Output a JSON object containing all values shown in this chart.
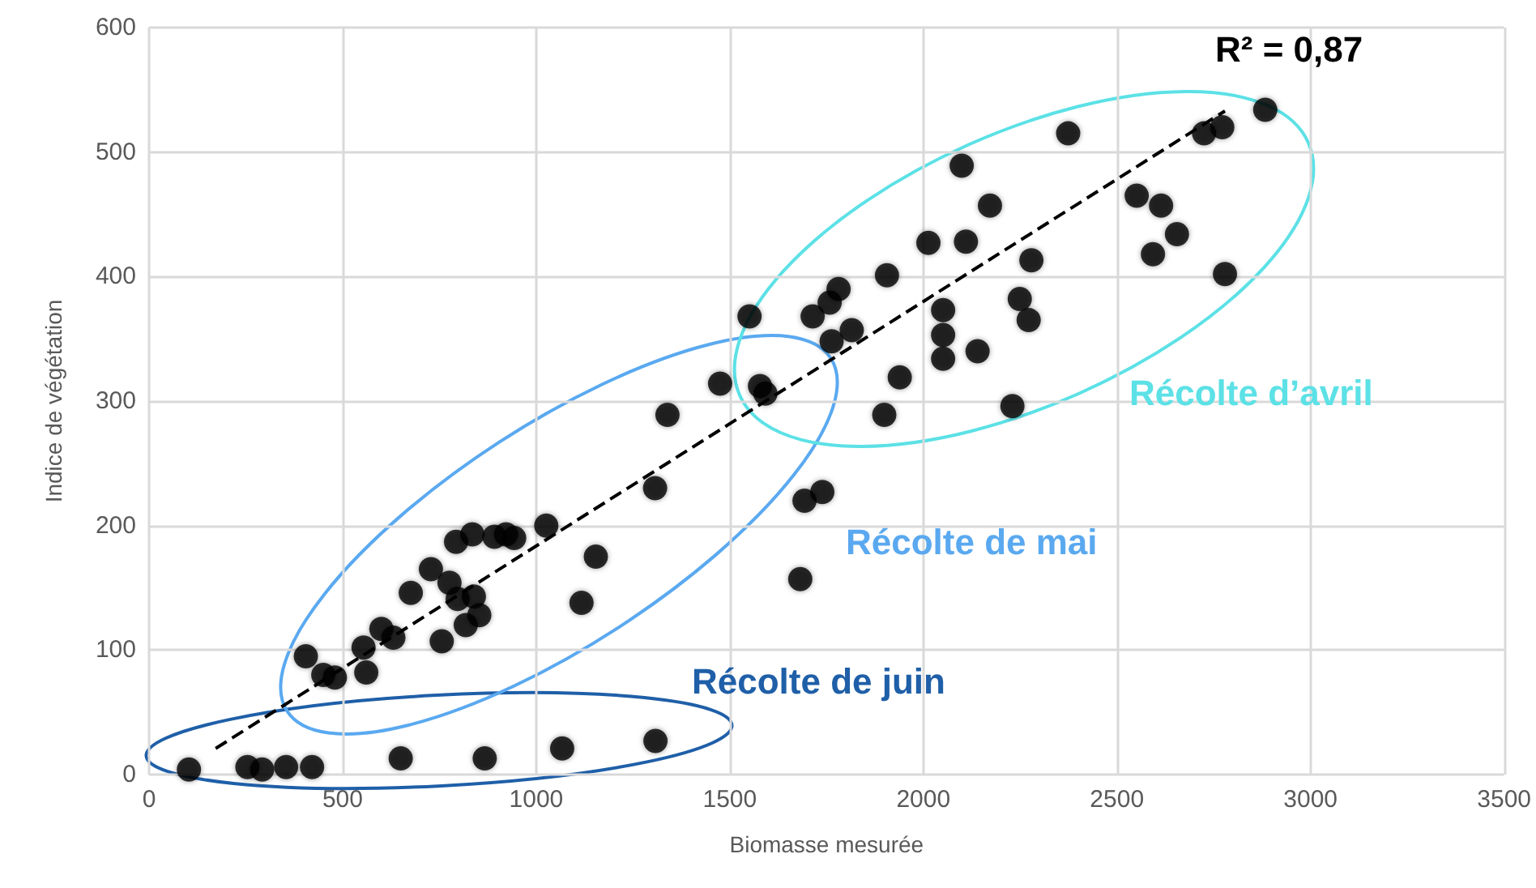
{
  "chart_data": {
    "type": "scatter",
    "xlabel": "Biomasse mesurée",
    "ylabel": "Indice de végétation",
    "xlim": [
      0,
      3500
    ],
    "xticks": [
      0,
      500,
      1000,
      1500,
      2000,
      2500,
      3000,
      3500
    ],
    "ylim": [
      0,
      600
    ],
    "yticks": [
      0,
      100,
      200,
      300,
      400,
      500,
      600
    ],
    "grid": true,
    "marker": "circle",
    "annotations": [
      "R² = 0,87",
      "Récolte d’avril",
      "Récolte de mai",
      "Récolte de juin"
    ],
    "series": [
      {
        "color": "#000000",
        "x": [
          103,
          254,
          292,
          354,
          421,
          650,
          867,
          1067,
          1308,
          405,
          450,
          480,
          554,
          561,
          600,
          631,
          756,
          818,
          853,
          839,
          797,
          776,
          728,
          676,
          793,
          835,
          892,
          922,
          943,
          1026,
          1154,
          1117,
          1307,
          1339,
          1682,
          1693,
          1739,
          1475,
          1578,
          1592,
          1551,
          1714,
          1758,
          1781,
          1763,
          1815,
          1906,
          1939,
          1899,
          2013,
          2110,
          2099,
          2172,
          2279,
          2051,
          2051,
          2051,
          2140,
          2249,
          2272,
          2230,
          2374,
          2551,
          2614,
          2655,
          2593,
          2779,
          2725,
          2772,
          2883
        ],
        "values": [
          4,
          6,
          4,
          6,
          6,
          13,
          13,
          21,
          27,
          95,
          80,
          78,
          102,
          82,
          117,
          110,
          107,
          120,
          128,
          143,
          141,
          154,
          165,
          146,
          187,
          193,
          191,
          193,
          190,
          200,
          175,
          138,
          230,
          289,
          157,
          220,
          227,
          314,
          312,
          306,
          368,
          368,
          379,
          390,
          348,
          357,
          401,
          319,
          289,
          427,
          428,
          489,
          457,
          413,
          373,
          353,
          334,
          340,
          382,
          365,
          296,
          515,
          465,
          457,
          434,
          418,
          402,
          515,
          520,
          534
        ]
      },
      {
        "type": "line",
        "color": "#000000",
        "line_style": "dashed",
        "marker": "none",
        "x": [
          172,
          2779
        ],
        "values": [
          21,
          533
        ]
      }
    ]
  }
}
